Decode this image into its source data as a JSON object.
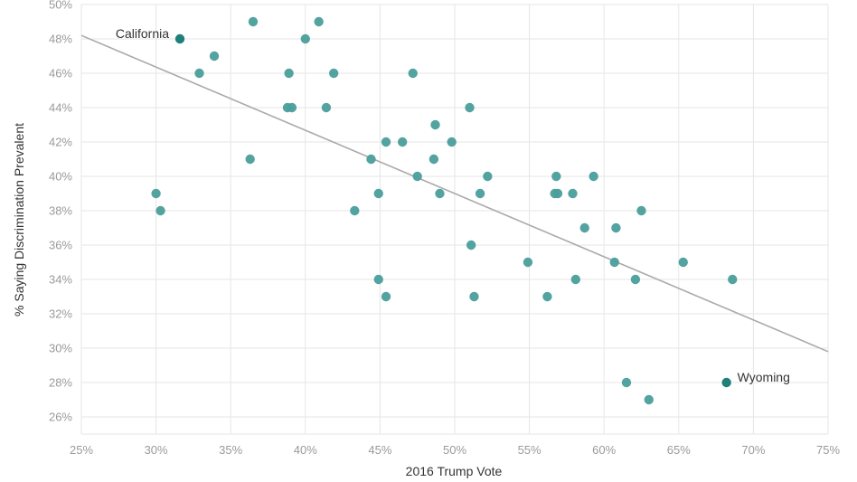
{
  "chart_data": {
    "type": "scatter",
    "title": "",
    "xlabel": "2016 Trump Vote",
    "ylabel": "% Saying Discrimination Prevalent",
    "xlim": [
      25,
      75
    ],
    "ylim": [
      25,
      50
    ],
    "x_ticks": [
      25,
      30,
      35,
      40,
      45,
      50,
      55,
      60,
      65,
      70,
      75
    ],
    "y_ticks": [
      26,
      28,
      30,
      32,
      34,
      36,
      38,
      40,
      42,
      44,
      46,
      48,
      50
    ],
    "x_tick_labels": [
      "25%",
      "30%",
      "35%",
      "40%",
      "45%",
      "50%",
      "55%",
      "60%",
      "65%",
      "70%",
      "75%"
    ],
    "y_tick_labels": [
      "26%",
      "28%",
      "30%",
      "32%",
      "34%",
      "36%",
      "38%",
      "40%",
      "42%",
      "44%",
      "46%",
      "48%",
      "50%"
    ],
    "grid": true,
    "colors": {
      "points": "#4a9e9b",
      "highlight": "#1f7f7b",
      "trendline": "#aaaaaa",
      "grid": "#e6e6e6"
    },
    "trendline": {
      "x": [
        25,
        75
      ],
      "y": [
        48.2,
        29.8
      ]
    },
    "points": [
      {
        "x": 30.0,
        "y": 39
      },
      {
        "x": 30.3,
        "y": 38
      },
      {
        "x": 32.9,
        "y": 46
      },
      {
        "x": 33.9,
        "y": 47
      },
      {
        "x": 36.3,
        "y": 41
      },
      {
        "x": 36.5,
        "y": 49
      },
      {
        "x": 38.8,
        "y": 44
      },
      {
        "x": 38.9,
        "y": 46
      },
      {
        "x": 39.1,
        "y": 44
      },
      {
        "x": 40.0,
        "y": 48
      },
      {
        "x": 40.9,
        "y": 49
      },
      {
        "x": 41.4,
        "y": 44
      },
      {
        "x": 41.9,
        "y": 46
      },
      {
        "x": 43.3,
        "y": 38
      },
      {
        "x": 44.4,
        "y": 41
      },
      {
        "x": 44.9,
        "y": 39
      },
      {
        "x": 44.9,
        "y": 34
      },
      {
        "x": 45.4,
        "y": 42
      },
      {
        "x": 45.4,
        "y": 33
      },
      {
        "x": 46.5,
        "y": 42
      },
      {
        "x": 47.2,
        "y": 46
      },
      {
        "x": 47.5,
        "y": 40
      },
      {
        "x": 48.6,
        "y": 41
      },
      {
        "x": 48.7,
        "y": 43
      },
      {
        "x": 49.0,
        "y": 39
      },
      {
        "x": 49.8,
        "y": 42
      },
      {
        "x": 51.0,
        "y": 44
      },
      {
        "x": 51.1,
        "y": 36
      },
      {
        "x": 51.3,
        "y": 33
      },
      {
        "x": 51.7,
        "y": 39
      },
      {
        "x": 52.2,
        "y": 40
      },
      {
        "x": 54.9,
        "y": 35
      },
      {
        "x": 56.2,
        "y": 33
      },
      {
        "x": 56.7,
        "y": 39
      },
      {
        "x": 56.8,
        "y": 40
      },
      {
        "x": 56.9,
        "y": 39
      },
      {
        "x": 57.9,
        "y": 39
      },
      {
        "x": 58.1,
        "y": 34
      },
      {
        "x": 58.7,
        "y": 37
      },
      {
        "x": 59.3,
        "y": 40
      },
      {
        "x": 60.7,
        "y": 35
      },
      {
        "x": 60.8,
        "y": 37
      },
      {
        "x": 61.5,
        "y": 28
      },
      {
        "x": 62.1,
        "y": 34
      },
      {
        "x": 62.5,
        "y": 38
      },
      {
        "x": 63.0,
        "y": 27
      },
      {
        "x": 65.3,
        "y": 35
      },
      {
        "x": 68.6,
        "y": 34
      }
    ],
    "highlighted": [
      {
        "label": "California",
        "x": 31.6,
        "y": 48,
        "label_side": "left"
      },
      {
        "label": "Wyoming",
        "x": 68.2,
        "y": 28,
        "label_side": "right"
      }
    ]
  }
}
